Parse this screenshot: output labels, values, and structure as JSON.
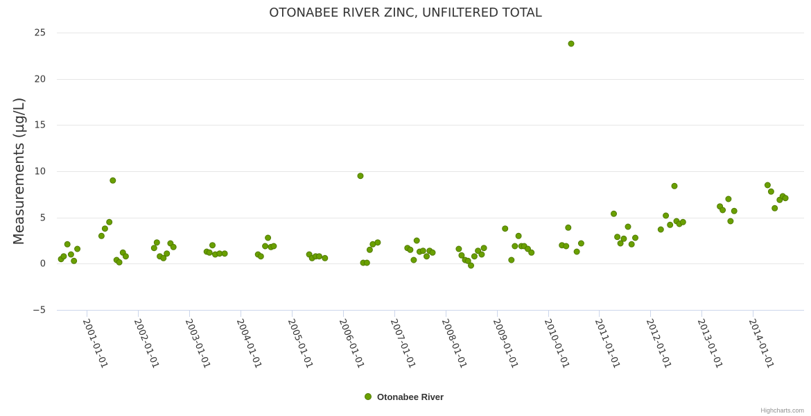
{
  "chart_data": {
    "type": "scatter",
    "title": "OTONABEE RIVER ZINC, UNFILTERED TOTAL",
    "ylabel": "Measurements (µg/L)",
    "xlabel": "",
    "ylim": [
      -5,
      25
    ],
    "yticks": [
      "−5",
      "0",
      "5",
      "10",
      "15",
      "20",
      "25"
    ],
    "xlim": [
      "2000-06-01",
      "2014-12-31"
    ],
    "xticks": [
      "2001-01-01",
      "2002-01-01",
      "2003-01-01",
      "2004-01-01",
      "2005-01-01",
      "2006-01-01",
      "2007-01-01",
      "2008-01-01",
      "2009-01-01",
      "2010-01-01",
      "2011-01-01",
      "2012-01-01",
      "2013-01-01",
      "2014-01-01"
    ],
    "grid": "horizontal",
    "legend_position": "bottom-center",
    "series": [
      {
        "name": "Otonabee River",
        "color": "#6aa001",
        "points": [
          [
            "2000-07-01",
            0.5
          ],
          [
            "2000-07-20",
            0.8
          ],
          [
            "2000-08-15",
            2.1
          ],
          [
            "2000-09-10",
            1.0
          ],
          [
            "2000-10-01",
            0.3
          ],
          [
            "2000-10-25",
            1.6
          ],
          [
            "2001-04-15",
            3.0
          ],
          [
            "2001-05-10",
            3.8
          ],
          [
            "2001-06-10",
            4.5
          ],
          [
            "2001-07-05",
            9.0
          ],
          [
            "2001-08-01",
            0.4
          ],
          [
            "2001-08-20",
            0.15
          ],
          [
            "2001-09-15",
            1.2
          ],
          [
            "2001-10-05",
            0.8
          ],
          [
            "2002-04-25",
            1.7
          ],
          [
            "2002-05-15",
            2.3
          ],
          [
            "2002-06-05",
            0.8
          ],
          [
            "2002-07-01",
            0.6
          ],
          [
            "2002-07-25",
            1.1
          ],
          [
            "2002-08-20",
            2.2
          ],
          [
            "2002-09-10",
            1.8
          ],
          [
            "2003-05-05",
            1.3
          ],
          [
            "2003-05-25",
            1.2
          ],
          [
            "2003-06-15",
            2.0
          ],
          [
            "2003-07-05",
            1.0
          ],
          [
            "2003-08-05",
            1.1
          ],
          [
            "2003-09-10",
            1.1
          ],
          [
            "2004-05-05",
            1.0
          ],
          [
            "2004-05-25",
            0.8
          ],
          [
            "2004-06-25",
            1.9
          ],
          [
            "2004-07-15",
            2.8
          ],
          [
            "2004-08-05",
            1.8
          ],
          [
            "2004-08-25",
            1.9
          ],
          [
            "2005-05-05",
            1.0
          ],
          [
            "2005-05-25",
            0.6
          ],
          [
            "2005-06-20",
            0.8
          ],
          [
            "2005-07-15",
            0.8
          ],
          [
            "2005-08-25",
            0.6
          ],
          [
            "2006-05-05",
            9.5
          ],
          [
            "2006-05-25",
            0.1
          ],
          [
            "2006-06-20",
            0.1
          ],
          [
            "2006-07-10",
            1.5
          ],
          [
            "2006-08-01",
            2.1
          ],
          [
            "2006-09-05",
            2.3
          ],
          [
            "2007-04-05",
            1.7
          ],
          [
            "2007-04-25",
            1.5
          ],
          [
            "2007-05-20",
            0.4
          ],
          [
            "2007-06-10",
            2.5
          ],
          [
            "2007-07-01",
            1.3
          ],
          [
            "2007-07-25",
            1.4
          ],
          [
            "2007-08-20",
            0.8
          ],
          [
            "2007-09-10",
            1.4
          ],
          [
            "2007-10-01",
            1.2
          ],
          [
            "2008-04-05",
            1.6
          ],
          [
            "2008-04-25",
            0.9
          ],
          [
            "2008-05-20",
            0.4
          ],
          [
            "2008-06-10",
            0.3
          ],
          [
            "2008-07-01",
            -0.2
          ],
          [
            "2008-07-25",
            0.8
          ],
          [
            "2008-08-20",
            1.4
          ],
          [
            "2008-09-15",
            1.0
          ],
          [
            "2008-10-01",
            1.7
          ],
          [
            "2009-03-01",
            3.8
          ],
          [
            "2009-04-15",
            0.4
          ],
          [
            "2009-05-10",
            1.9
          ],
          [
            "2009-06-05",
            3.0
          ],
          [
            "2009-06-25",
            1.9
          ],
          [
            "2009-07-15",
            1.9
          ],
          [
            "2009-08-10",
            1.6
          ],
          [
            "2009-09-05",
            1.2
          ],
          [
            "2010-04-10",
            2.0
          ],
          [
            "2010-05-10",
            1.9
          ],
          [
            "2010-05-25",
            3.9
          ],
          [
            "2010-06-15",
            23.8
          ],
          [
            "2010-07-25",
            1.3
          ],
          [
            "2010-08-25",
            2.2
          ],
          [
            "2011-04-15",
            5.4
          ],
          [
            "2011-05-10",
            2.9
          ],
          [
            "2011-06-01",
            2.2
          ],
          [
            "2011-06-25",
            2.7
          ],
          [
            "2011-07-25",
            4.0
          ],
          [
            "2011-08-20",
            2.1
          ],
          [
            "2011-09-15",
            2.8
          ],
          [
            "2012-03-15",
            3.7
          ],
          [
            "2012-04-20",
            5.2
          ],
          [
            "2012-05-20",
            4.2
          ],
          [
            "2012-06-20",
            8.4
          ],
          [
            "2012-07-05",
            4.6
          ],
          [
            "2012-07-25",
            4.3
          ],
          [
            "2012-08-20",
            4.5
          ],
          [
            "2013-05-10",
            6.2
          ],
          [
            "2013-05-30",
            5.8
          ],
          [
            "2013-07-10",
            7.0
          ],
          [
            "2013-07-25",
            4.6
          ],
          [
            "2013-08-20",
            5.7
          ],
          [
            "2014-04-15",
            8.5
          ],
          [
            "2014-05-10",
            7.8
          ],
          [
            "2014-06-05",
            6.0
          ],
          [
            "2014-07-10",
            6.9
          ],
          [
            "2014-08-01",
            7.3
          ],
          [
            "2014-08-20",
            7.1
          ]
        ]
      }
    ]
  },
  "credits": "Highcharts.com"
}
